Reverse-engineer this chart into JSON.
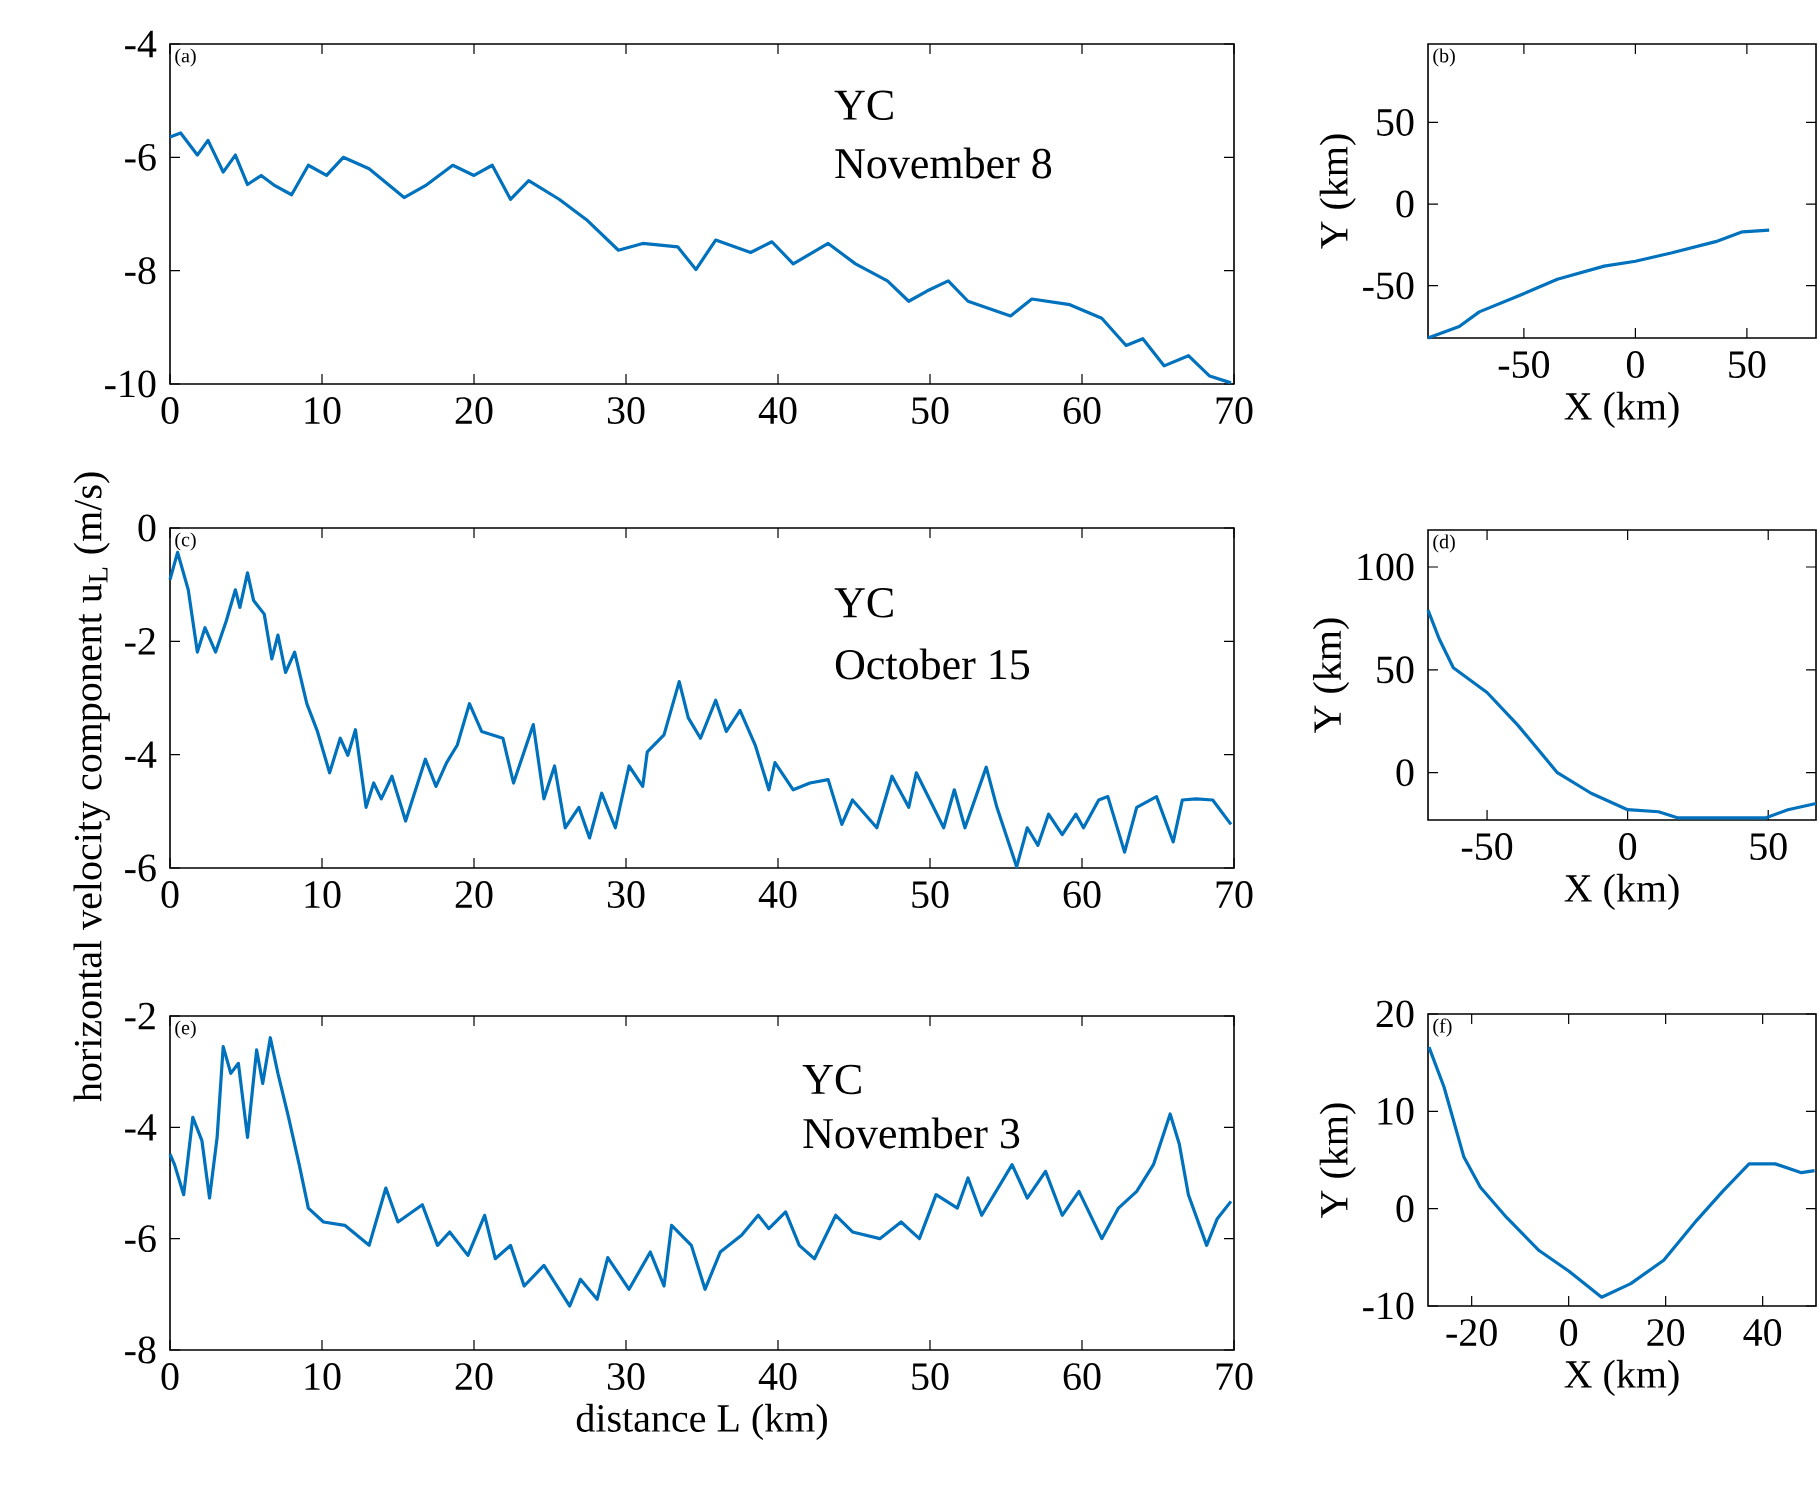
{
  "chart_data": [
    {
      "type": "line",
      "annotations": [
        "(a)",
        "YC",
        "November 8"
      ],
      "xlim": [
        0,
        70
      ],
      "ylim": [
        -10,
        -4
      ],
      "xticks": [
        0,
        10,
        20,
        30,
        40,
        50,
        60,
        70
      ],
      "yticks": [
        -10,
        -8,
        -6,
        -4
      ],
      "x": [
        0,
        0.7,
        1.8,
        2.5,
        3.5,
        4.3,
        5.1,
        6.0,
        6.9,
        8.0,
        9.1,
        10.3,
        11.4,
        13.1,
        15.4,
        16.8,
        18.6,
        20.0,
        21.2,
        22.4,
        23.6,
        25.6,
        27.4,
        29.5,
        31.1,
        33.4,
        34.6,
        35.9,
        38.2,
        39.6,
        41.0,
        43.3,
        45.1,
        47.2,
        48.6,
        49.8,
        51.2,
        52.5,
        55.3,
        56.7,
        59.2,
        61.3,
        62.9,
        64.0,
        65.4,
        67.0,
        68.4,
        69.8
      ],
      "series": [
        {
          "color": "#0072bd",
          "values": [
            -5.64,
            -5.57,
            -5.96,
            -5.7,
            -6.26,
            -5.96,
            -6.48,
            -6.32,
            -6.5,
            -6.66,
            -6.14,
            -6.32,
            -6.0,
            -6.2,
            -6.71,
            -6.5,
            -6.14,
            -6.32,
            -6.14,
            -6.74,
            -6.41,
            -6.74,
            -7.1,
            -7.64,
            -7.52,
            -7.58,
            -7.98,
            -7.46,
            -7.68,
            -7.49,
            -7.88,
            -7.52,
            -7.88,
            -8.18,
            -8.54,
            -8.36,
            -8.18,
            -8.54,
            -8.8,
            -8.5,
            -8.6,
            -8.84,
            -9.32,
            -9.2,
            -9.68,
            -9.5,
            -9.86,
            -9.98
          ]
        }
      ]
    },
    {
      "type": "line",
      "annotations": [
        "(b)"
      ],
      "xlabel": "X (km)",
      "ylabel": "Y (km)",
      "xlim": [
        -93,
        81
      ],
      "ylim": [
        -82,
        98
      ],
      "xticks": [
        -50,
        0,
        50
      ],
      "yticks": [
        -50,
        0,
        50
      ],
      "x": [
        -93,
        -79,
        -70,
        -52,
        -35,
        -14,
        0,
        16,
        36,
        48,
        60
      ],
      "series": [
        {
          "color": "#0072bd",
          "values": [
            -82,
            -75,
            -66,
            -56,
            -46,
            -38,
            -35,
            -30,
            -23,
            -17,
            -16
          ]
        }
      ]
    },
    {
      "type": "line",
      "annotations": [
        "(c)",
        "YC",
        "October 15"
      ],
      "ylabel": "horizontal velocity component u$_{L}$ (m/s)",
      "xlim": [
        0,
        70
      ],
      "ylim": [
        -6,
        0
      ],
      "xticks": [
        0,
        10,
        20,
        30,
        40,
        50,
        60,
        70
      ],
      "yticks": [
        -6,
        -4,
        -2,
        0
      ],
      "x": [
        0,
        0.5,
        1.2,
        1.8,
        2.3,
        3.0,
        3.7,
        4.3,
        4.6,
        5.1,
        5.5,
        6.2,
        6.7,
        7.1,
        7.6,
        8.2,
        9.0,
        9.7,
        10.5,
        11.2,
        11.7,
        12.2,
        12.9,
        13.4,
        13.9,
        14.6,
        15.5,
        16.8,
        17.5,
        18.2,
        18.9,
        19.7,
        20.5,
        21.9,
        22.6,
        23.9,
        24.6,
        25.3,
        26.0,
        26.9,
        27.6,
        28.4,
        29.3,
        30.2,
        31.1,
        31.4,
        32.5,
        33.5,
        34.1,
        34.9,
        35.9,
        36.6,
        37.5,
        38.5,
        39.4,
        39.8,
        41.0,
        42.1,
        43.3,
        44.2,
        44.9,
        46.5,
        47.5,
        48.6,
        49.1,
        50.9,
        51.6,
        52.3,
        53.7,
        54.4,
        55.7,
        56.4,
        57.1,
        57.8,
        58.7,
        59.6,
        60.1,
        61.1,
        61.7,
        62.8,
        63.6,
        64.9,
        66.0,
        66.6,
        67.5,
        68.6,
        69.8
      ],
      "series": [
        {
          "color": "#0072bd",
          "values": [
            -0.91,
            -0.43,
            -1.09,
            -2.19,
            -1.76,
            -2.19,
            -1.64,
            -1.09,
            -1.4,
            -0.79,
            -1.28,
            -1.52,
            -2.31,
            -1.89,
            -2.55,
            -2.19,
            -3.1,
            -3.59,
            -4.32,
            -3.71,
            -4.01,
            -3.56,
            -4.93,
            -4.5,
            -4.78,
            -4.38,
            -5.17,
            -4.08,
            -4.56,
            -4.14,
            -3.83,
            -3.1,
            -3.59,
            -3.71,
            -4.5,
            -3.47,
            -4.78,
            -4.2,
            -5.29,
            -4.93,
            -5.47,
            -4.68,
            -5.29,
            -4.2,
            -4.56,
            -3.95,
            -3.65,
            -2.71,
            -3.35,
            -3.71,
            -3.04,
            -3.59,
            -3.22,
            -3.83,
            -4.62,
            -4.14,
            -4.62,
            -4.5,
            -4.44,
            -5.23,
            -4.8,
            -5.29,
            -4.38,
            -4.93,
            -4.32,
            -5.29,
            -4.62,
            -5.29,
            -4.22,
            -4.93,
            -5.98,
            -5.29,
            -5.6,
            -5.05,
            -5.41,
            -5.05,
            -5.29,
            -4.8,
            -4.74,
            -5.72,
            -4.93,
            -4.74,
            -5.54,
            -4.8,
            -4.78,
            -4.8,
            -5.23
          ]
        }
      ]
    },
    {
      "type": "line",
      "annotations": [
        "(d)"
      ],
      "xlabel": "X (km)",
      "ylabel": "Y (km)",
      "xlim": [
        -71,
        67
      ],
      "ylim": [
        -23,
        118
      ],
      "xticks": [
        -50,
        0,
        50
      ],
      "yticks": [
        0,
        50,
        100
      ],
      "x": [
        -71,
        -67,
        -62,
        -50,
        -39,
        -25,
        -13,
        0,
        11,
        18,
        34,
        49,
        57,
        67
      ],
      "series": [
        {
          "color": "#0072bd",
          "values": [
            79,
            65,
            51,
            39,
            23,
            0,
            -10,
            -18,
            -19,
            -22,
            -22,
            -22,
            -18,
            -15
          ]
        }
      ]
    },
    {
      "type": "line",
      "annotations": [
        "(e)",
        "YC",
        "November 3"
      ],
      "xlabel": "distance L (km)",
      "xlim": [
        0,
        70
      ],
      "ylim": [
        -8,
        -2
      ],
      "xticks": [
        0,
        10,
        20,
        30,
        40,
        50,
        60,
        70
      ],
      "yticks": [
        -8,
        -6,
        -4,
        -2
      ],
      "x": [
        0,
        0.3,
        0.9,
        1.5,
        2.1,
        2.6,
        3.1,
        3.5,
        4.0,
        4.5,
        5.1,
        5.7,
        6.1,
        6.6,
        7.1,
        7.8,
        8.5,
        9.1,
        10.1,
        11.5,
        13.1,
        14.2,
        15.0,
        16.6,
        17.6,
        18.4,
        19.6,
        20.7,
        21.4,
        22.4,
        23.3,
        24.6,
        26.3,
        27.0,
        28.1,
        28.8,
        30.2,
        31.6,
        32.5,
        33.0,
        34.3,
        35.2,
        36.2,
        37.6,
        38.7,
        39.4,
        40.5,
        41.4,
        42.4,
        43.8,
        44.9,
        46.7,
        48.1,
        49.3,
        50.4,
        51.8,
        52.5,
        53.4,
        55.4,
        56.4,
        57.6,
        58.7,
        59.8,
        61.3,
        62.4,
        63.6,
        64.7,
        65.8,
        66.4,
        67.0,
        68.2,
        68.9,
        69.8
      ],
      "series": [
        {
          "color": "#0072bd",
          "values": [
            -4.48,
            -4.67,
            -5.21,
            -3.82,
            -4.24,
            -5.27,
            -4.18,
            -2.55,
            -3.03,
            -2.85,
            -4.18,
            -2.61,
            -3.21,
            -2.39,
            -3.03,
            -3.82,
            -4.67,
            -5.45,
            -5.7,
            -5.76,
            -6.12,
            -5.09,
            -5.7,
            -5.39,
            -6.12,
            -5.88,
            -6.3,
            -5.58,
            -6.36,
            -6.12,
            -6.85,
            -6.48,
            -7.21,
            -6.73,
            -7.09,
            -6.34,
            -6.91,
            -6.24,
            -6.85,
            -5.76,
            -6.12,
            -6.91,
            -6.24,
            -5.94,
            -5.58,
            -5.82,
            -5.52,
            -6.12,
            -6.36,
            -5.58,
            -5.88,
            -6.0,
            -5.7,
            -6.0,
            -5.21,
            -5.45,
            -4.91,
            -5.58,
            -4.67,
            -5.27,
            -4.79,
            -5.58,
            -5.15,
            -6.0,
            -5.45,
            -5.15,
            -4.67,
            -3.76,
            -4.3,
            -5.21,
            -6.12,
            -5.64,
            -5.33
          ]
        }
      ]
    },
    {
      "type": "line",
      "annotations": [
        "(f)"
      ],
      "xlabel": "X (km)",
      "ylabel": "Y (km)",
      "xlim": [
        -29,
        51
      ],
      "ylim": [
        -10,
        20
      ],
      "xticks": [
        -20,
        0,
        20,
        40
      ],
      "yticks": [
        -10,
        0,
        10,
        20
      ],
      "x": [
        -28.8,
        -25.7,
        -21.6,
        -18.2,
        -12.8,
        -6.1,
        0,
        6.8,
        12.8,
        19.6,
        26.4,
        31.8,
        37.2,
        42.6,
        48,
        50.7
      ],
      "series": [
        {
          "color": "#0072bd",
          "values": [
            16.6,
            12.5,
            5.3,
            2.2,
            -0.9,
            -4.3,
            -6.4,
            -9.1,
            -7.7,
            -5.3,
            -1.2,
            1.8,
            4.6,
            4.6,
            3.7,
            3.9
          ]
        }
      ]
    }
  ]
}
